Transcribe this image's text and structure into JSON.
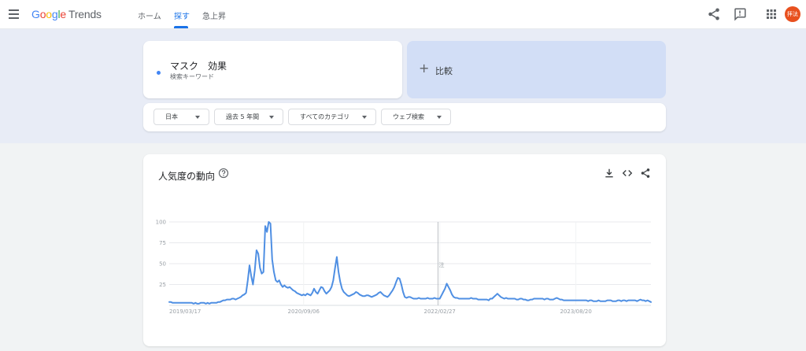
{
  "header": {
    "logo": {
      "google": "Google",
      "trends": "Trends"
    },
    "nav": [
      "ホーム",
      "探す",
      "急上昇"
    ],
    "active_tab": "探す",
    "avatar_text": "拝汰",
    "icons": [
      "menu-icon",
      "share-icon",
      "feedback-icon",
      "apps-icon"
    ]
  },
  "search": {
    "term": "マスク　効果",
    "term_type": "検索キーワード",
    "term_color": "#4285f4",
    "compare_label": "比較",
    "filters": [
      "日本",
      "過去 5 年間",
      "すべてのカテゴリ",
      "ウェブ検索"
    ]
  },
  "chart_section": {
    "title": "人気度の動向",
    "note_marker": "注",
    "icons": [
      "help-icon",
      "download-icon",
      "embed-icon",
      "share-icon"
    ]
  },
  "chart_data": {
    "type": "line",
    "title": "人気度の動向",
    "xlabel": "",
    "ylabel": "",
    "ylim": [
      0,
      100
    ],
    "yticks": [
      100,
      75,
      50,
      25
    ],
    "x_tick_labels": [
      {
        "label": "2019/03/17",
        "index": 0
      },
      {
        "label": "2020/09/06",
        "index": 77
      },
      {
        "label": "2022/02/27",
        "index": 155
      },
      {
        "label": "2023/08/20",
        "index": 233
      }
    ],
    "note_index": 154,
    "grid": true,
    "series": [
      {
        "color": "#4f8fe3",
        "values": [
          4,
          4,
          3,
          3,
          3,
          3,
          3,
          3,
          3,
          3,
          3,
          3,
          3,
          3,
          2,
          3,
          2,
          2,
          3,
          3,
          3,
          2,
          3,
          2,
          3,
          3,
          3,
          3,
          4,
          4,
          5,
          6,
          6,
          7,
          7,
          7,
          8,
          8,
          7,
          8,
          9,
          10,
          12,
          13,
          15,
          30,
          48,
          35,
          25,
          42,
          66,
          62,
          45,
          38,
          40,
          95,
          88,
          100,
          98,
          55,
          40,
          30,
          28,
          30,
          25,
          22,
          24,
          22,
          21,
          22,
          20,
          18,
          17,
          15,
          14,
          13,
          12,
          13,
          12,
          14,
          13,
          12,
          15,
          20,
          16,
          14,
          18,
          22,
          21,
          17,
          14,
          16,
          18,
          22,
          30,
          45,
          58,
          40,
          28,
          20,
          16,
          14,
          12,
          11,
          12,
          13,
          14,
          16,
          15,
          13,
          12,
          11,
          11,
          12,
          12,
          11,
          10,
          11,
          12,
          13,
          15,
          16,
          14,
          12,
          11,
          10,
          12,
          15,
          18,
          22,
          28,
          33,
          32,
          25,
          16,
          10,
          9,
          10,
          10,
          9,
          8,
          8,
          8,
          9,
          8,
          8,
          8,
          8,
          9,
          8,
          8,
          8,
          9,
          8,
          8,
          8,
          12,
          16,
          20,
          26,
          22,
          18,
          13,
          10,
          9,
          9,
          8,
          8,
          8,
          8,
          8,
          8,
          8,
          9,
          8,
          8,
          8,
          7,
          7,
          7,
          7,
          7,
          7,
          6,
          8,
          8,
          10,
          12,
          14,
          12,
          10,
          9,
          8,
          9,
          8,
          8,
          8,
          8,
          8,
          7,
          7,
          8,
          8,
          7,
          7,
          6,
          6,
          7,
          7,
          8,
          8,
          8,
          8,
          8,
          8,
          7,
          8,
          8,
          7,
          7,
          7,
          8,
          9,
          8,
          7,
          7,
          6,
          6,
          6,
          6,
          6,
          6,
          6,
          6,
          6,
          6,
          6,
          6,
          6,
          6,
          5,
          6,
          6,
          5,
          5,
          5,
          6,
          5,
          5,
          5,
          5,
          6,
          6,
          6,
          5,
          5,
          5,
          6,
          6,
          5,
          6,
          6,
          5,
          6,
          6,
          6,
          6,
          6,
          5,
          6,
          7,
          6,
          6,
          5,
          6,
          5,
          4
        ]
      }
    ]
  }
}
